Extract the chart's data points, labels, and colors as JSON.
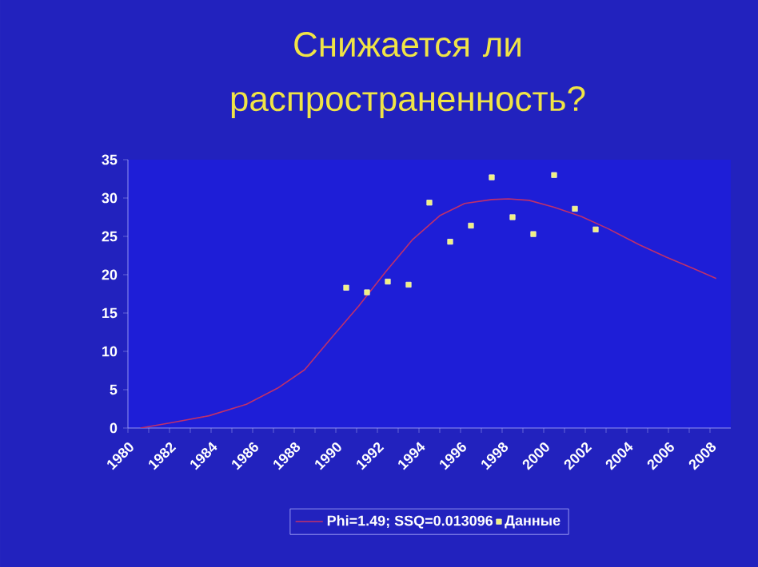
{
  "chart_data": {
    "type": "scatter",
    "title": "Снижается ли распространенность?",
    "xlim": [
      1980,
      2009
    ],
    "ylim": [
      0,
      35
    ],
    "xticks": [
      1980,
      {
        "value": 1981,
        "label": null
      },
      1982,
      {
        "value": 1983,
        "label": null
      },
      1984,
      {
        "value": 1985,
        "label": null
      },
      1986,
      {
        "value": 1987,
        "label": null
      },
      1988,
      {
        "value": 1989,
        "label": null
      },
      1990,
      {
        "value": 1991,
        "label": null
      },
      1992,
      {
        "value": 1993,
        "label": null
      },
      1994,
      {
        "value": 1995,
        "label": null
      },
      1996,
      {
        "value": 1997,
        "label": null
      },
      1998,
      {
        "value": 1999,
        "label": null
      },
      2000,
      {
        "value": 2001,
        "label": null
      },
      2002,
      {
        "value": 2003,
        "label": null
      },
      2004,
      {
        "value": 2005,
        "label": null
      },
      2006,
      {
        "value": 2007,
        "label": null
      },
      2008
    ],
    "yticks": [
      0,
      5,
      10,
      15,
      20,
      25,
      30,
      35
    ],
    "legend": "bottom",
    "grid": false,
    "series": [
      {
        "name": "Phi=1.49; SSQ=0.013096",
        "type": "line",
        "color": "#c0306a",
        "marker": "none",
        "x": [
          1980.6,
          1982.1,
          1983.9,
          1985.7,
          1987.2,
          1988.5,
          1989.8,
          1991.1,
          1992.4,
          1993.7,
          1995.0,
          1996.2,
          1997.5,
          1998.3,
          1999.3,
          2000.5,
          2001.8,
          2003.1,
          2004.6,
          2005.9,
          2007.2,
          2008.3
        ],
        "values": [
          0,
          0.7,
          1.6,
          3.1,
          5.2,
          7.6,
          11.8,
          15.9,
          20.4,
          24.6,
          27.7,
          29.3,
          29.8,
          29.9,
          29.7,
          28.8,
          27.6,
          26.0,
          23.9,
          22.3,
          20.8,
          19.5
        ]
      },
      {
        "name": "Данные",
        "color": "#f0f080",
        "marker": "square",
        "x": [
          1990.5,
          1991.5,
          1992.5,
          1993.5,
          1994.5,
          1995.5,
          1996.5,
          1997.5,
          1998.5,
          1999.5,
          2000.5,
          2001.5,
          2002.5
        ],
        "values": [
          18.3,
          17.7,
          19.1,
          18.7,
          29.4,
          24.3,
          26.4,
          32.7,
          27.5,
          25.3,
          33.0,
          28.6,
          25.9
        ]
      }
    ]
  }
}
